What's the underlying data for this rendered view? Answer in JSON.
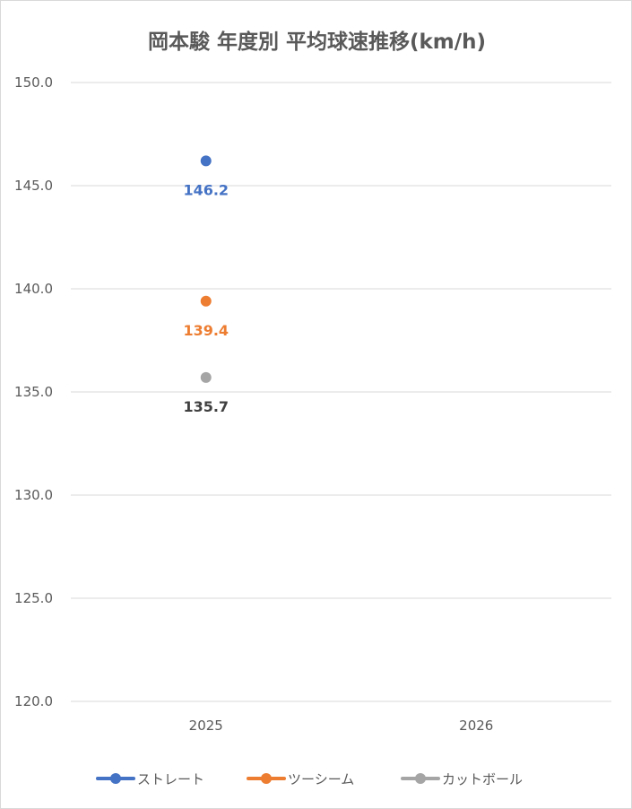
{
  "chart_data": {
    "type": "line",
    "title": "岡本駿 年度別 平均球速推移(km/h)",
    "xlabel": "",
    "ylabel": "",
    "categories": [
      "2025",
      "2026"
    ],
    "ylim": [
      120.0,
      150.0
    ],
    "yticks": [
      "120.0",
      "125.0",
      "130.0",
      "135.0",
      "140.0",
      "145.0",
      "150.0"
    ],
    "grid": true,
    "legend_position": "bottom",
    "series": [
      {
        "name": "ストレート",
        "color": "#4472c4",
        "values": [
          146.2,
          null
        ],
        "labels": [
          "146.2",
          ""
        ]
      },
      {
        "name": "ツーシーム",
        "color": "#ed7d31",
        "values": [
          139.4,
          null
        ],
        "labels": [
          "139.4",
          ""
        ]
      },
      {
        "name": "カットボール",
        "color": "#a5a5a5",
        "values": [
          135.7,
          null
        ],
        "labels": [
          "135.7",
          ""
        ]
      }
    ],
    "label_colors": [
      "#4472c4",
      "#ed7d31",
      "#404040"
    ]
  }
}
